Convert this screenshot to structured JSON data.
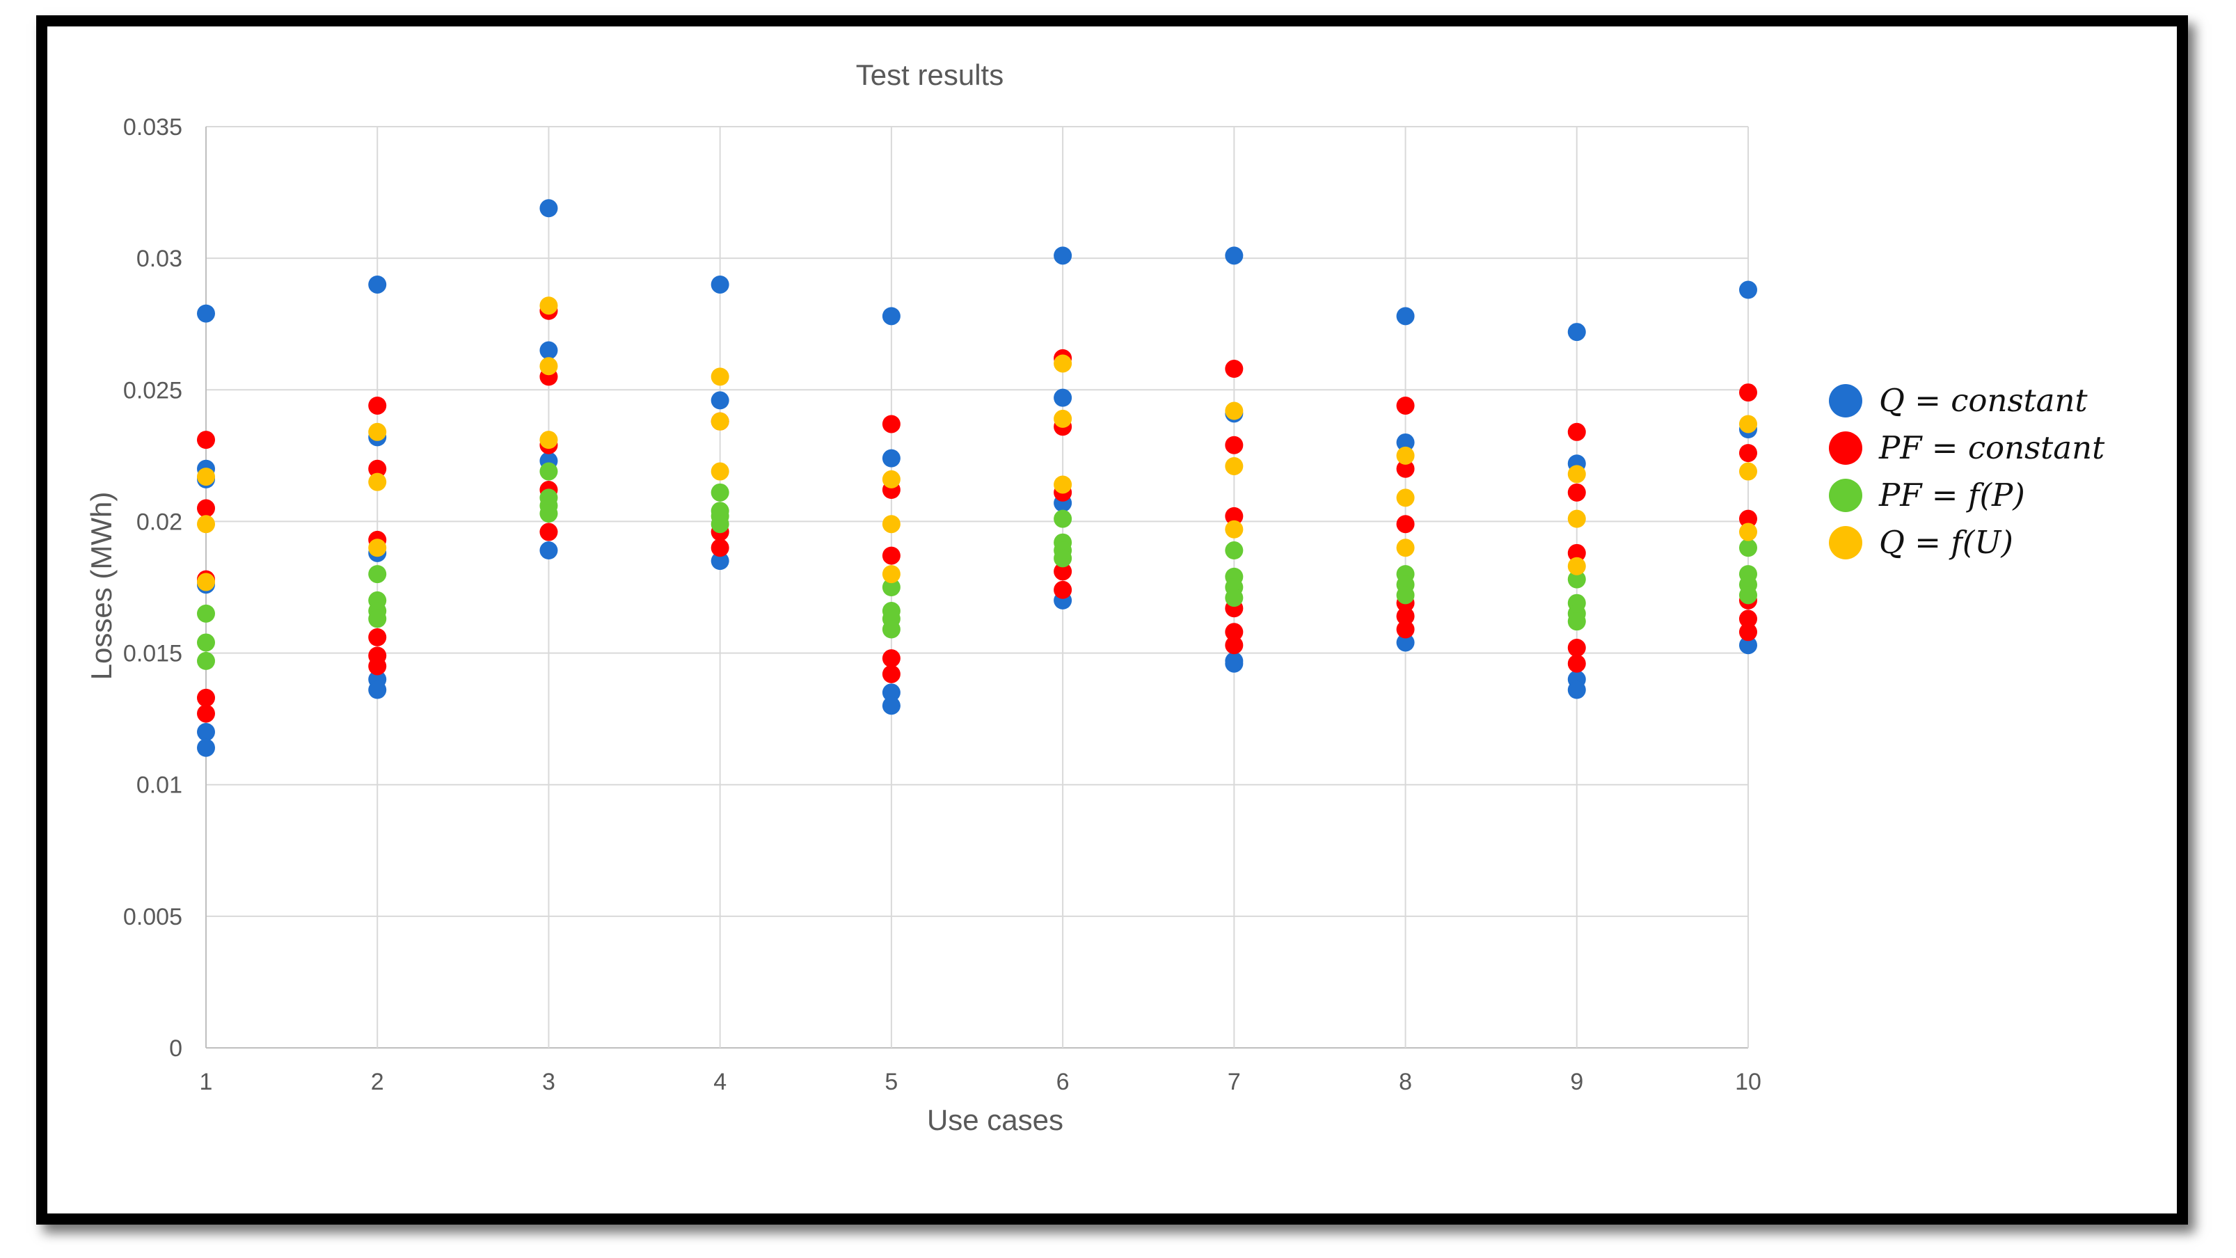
{
  "chart_data": {
    "type": "scatter",
    "title": "Test results",
    "xlabel": "Use cases",
    "ylabel": "Losses (MWh)",
    "xlim": [
      1,
      10
    ],
    "ylim": [
      0,
      0.035
    ],
    "x_ticks": [
      "1",
      "2",
      "3",
      "4",
      "5",
      "6",
      "7",
      "8",
      "9",
      "10"
    ],
    "y_ticks": [
      "0",
      "0.005",
      "0.01",
      "0.015",
      "0.02",
      "0.025",
      "0.03",
      "0.035"
    ],
    "grid": true,
    "legend_position": "right",
    "series": [
      {
        "name": "Q = constant",
        "color": "#1f6fcf",
        "points": [
          [
            1,
            0.0279
          ],
          [
            1,
            0.022
          ],
          [
            1,
            0.0216
          ],
          [
            1,
            0.0176
          ],
          [
            1,
            0.012
          ],
          [
            1,
            0.0114
          ],
          [
            2,
            0.029
          ],
          [
            2,
            0.0232
          ],
          [
            2,
            0.0188
          ],
          [
            2,
            0.014
          ],
          [
            2,
            0.0136
          ],
          [
            3,
            0.0319
          ],
          [
            3,
            0.0265
          ],
          [
            3,
            0.0223
          ],
          [
            3,
            0.0189
          ],
          [
            4,
            0.029
          ],
          [
            4,
            0.0246
          ],
          [
            4,
            0.0185
          ],
          [
            5,
            0.0278
          ],
          [
            5,
            0.0224
          ],
          [
            5,
            0.0135
          ],
          [
            5,
            0.013
          ],
          [
            6,
            0.0301
          ],
          [
            6,
            0.0247
          ],
          [
            6,
            0.0207
          ],
          [
            6,
            0.017
          ],
          [
            7,
            0.0301
          ],
          [
            7,
            0.0241
          ],
          [
            7,
            0.0147
          ],
          [
            7,
            0.0146
          ],
          [
            8,
            0.0278
          ],
          [
            8,
            0.023
          ],
          [
            8,
            0.0154
          ],
          [
            9,
            0.0272
          ],
          [
            9,
            0.0222
          ],
          [
            9,
            0.014
          ],
          [
            9,
            0.0136
          ],
          [
            10,
            0.0288
          ],
          [
            10,
            0.0235
          ],
          [
            10,
            0.0153
          ]
        ]
      },
      {
        "name": "PF = constant",
        "color": "#ff0000",
        "points": [
          [
            1,
            0.0231
          ],
          [
            1,
            0.0205
          ],
          [
            1,
            0.0178
          ],
          [
            1,
            0.0133
          ],
          [
            1,
            0.0127
          ],
          [
            2,
            0.0244
          ],
          [
            2,
            0.022
          ],
          [
            2,
            0.0193
          ],
          [
            2,
            0.0156
          ],
          [
            2,
            0.0149
          ],
          [
            2,
            0.0145
          ],
          [
            3,
            0.028
          ],
          [
            3,
            0.0255
          ],
          [
            3,
            0.0229
          ],
          [
            3,
            0.0212
          ],
          [
            3,
            0.0196
          ],
          [
            4,
            0.0238
          ],
          [
            4,
            0.0196
          ],
          [
            4,
            0.019
          ],
          [
            5,
            0.0237
          ],
          [
            5,
            0.0212
          ],
          [
            5,
            0.0187
          ],
          [
            5,
            0.0148
          ],
          [
            5,
            0.0142
          ],
          [
            6,
            0.0262
          ],
          [
            6,
            0.0236
          ],
          [
            6,
            0.0211
          ],
          [
            6,
            0.0181
          ],
          [
            6,
            0.0174
          ],
          [
            7,
            0.0258
          ],
          [
            7,
            0.0229
          ],
          [
            7,
            0.0202
          ],
          [
            7,
            0.0167
          ],
          [
            7,
            0.0158
          ],
          [
            7,
            0.0153
          ],
          [
            8,
            0.0244
          ],
          [
            8,
            0.022
          ],
          [
            8,
            0.0199
          ],
          [
            8,
            0.0169
          ],
          [
            8,
            0.0164
          ],
          [
            8,
            0.0159
          ],
          [
            9,
            0.0234
          ],
          [
            9,
            0.0211
          ],
          [
            9,
            0.0188
          ],
          [
            9,
            0.0152
          ],
          [
            9,
            0.0146
          ],
          [
            10,
            0.0249
          ],
          [
            10,
            0.0226
          ],
          [
            10,
            0.0201
          ],
          [
            10,
            0.017
          ],
          [
            10,
            0.0163
          ],
          [
            10,
            0.0158
          ]
        ]
      },
      {
        "name": "PF = f(P)",
        "color": "#66cc33",
        "points": [
          [
            1,
            0.0165
          ],
          [
            1,
            0.0154
          ],
          [
            1,
            0.0147
          ],
          [
            2,
            0.018
          ],
          [
            2,
            0.017
          ],
          [
            2,
            0.0166
          ],
          [
            2,
            0.0163
          ],
          [
            3,
            0.0219
          ],
          [
            3,
            0.0209
          ],
          [
            3,
            0.0206
          ],
          [
            3,
            0.0203
          ],
          [
            4,
            0.0211
          ],
          [
            4,
            0.0204
          ],
          [
            4,
            0.0202
          ],
          [
            4,
            0.0199
          ],
          [
            5,
            0.0175
          ],
          [
            5,
            0.0166
          ],
          [
            5,
            0.0163
          ],
          [
            5,
            0.0159
          ],
          [
            6,
            0.0201
          ],
          [
            6,
            0.0192
          ],
          [
            6,
            0.0189
          ],
          [
            6,
            0.0186
          ],
          [
            7,
            0.0189
          ],
          [
            7,
            0.0179
          ],
          [
            7,
            0.0175
          ],
          [
            7,
            0.0171
          ],
          [
            8,
            0.018
          ],
          [
            8,
            0.0176
          ],
          [
            8,
            0.0172
          ],
          [
            9,
            0.0178
          ],
          [
            9,
            0.0169
          ],
          [
            9,
            0.0165
          ],
          [
            9,
            0.0162
          ],
          [
            10,
            0.019
          ],
          [
            10,
            0.018
          ],
          [
            10,
            0.0176
          ],
          [
            10,
            0.0172
          ]
        ]
      },
      {
        "name": "Q = f(U)",
        "color": "#ffc000",
        "points": [
          [
            1,
            0.0217
          ],
          [
            1,
            0.0199
          ],
          [
            1,
            0.0177
          ],
          [
            2,
            0.0234
          ],
          [
            2,
            0.0215
          ],
          [
            2,
            0.019
          ],
          [
            3,
            0.0282
          ],
          [
            3,
            0.0259
          ],
          [
            3,
            0.0231
          ],
          [
            4,
            0.0255
          ],
          [
            4,
            0.0238
          ],
          [
            4,
            0.0219
          ],
          [
            5,
            0.0216
          ],
          [
            5,
            0.0199
          ],
          [
            5,
            0.018
          ],
          [
            6,
            0.026
          ],
          [
            6,
            0.0239
          ],
          [
            6,
            0.0214
          ],
          [
            7,
            0.0242
          ],
          [
            7,
            0.0221
          ],
          [
            7,
            0.0197
          ],
          [
            8,
            0.0225
          ],
          [
            8,
            0.0209
          ],
          [
            8,
            0.019
          ],
          [
            9,
            0.0218
          ],
          [
            9,
            0.0201
          ],
          [
            9,
            0.0183
          ],
          [
            10,
            0.0237
          ],
          [
            10,
            0.0219
          ],
          [
            10,
            0.0196
          ]
        ]
      }
    ]
  }
}
